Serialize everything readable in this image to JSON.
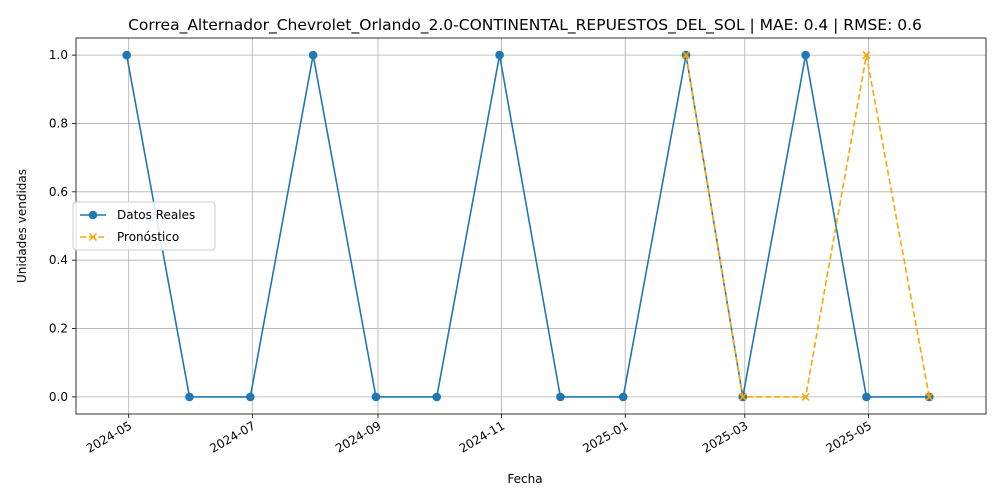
{
  "chart_data": {
    "type": "line",
    "title": "Correa_Alternador_Chevrolet_Orlando_2.0-CONTINENTAL_REPUESTOS_DEL_SOL | MAE: 0.4 | RMSE: 0.6",
    "xlabel": "Fecha",
    "ylabel": "Unidades vendidas",
    "xlim": [
      "2024-04-05",
      "2025-06-28"
    ],
    "ylim": [
      -0.05,
      1.05
    ],
    "grid": true,
    "legend_position": "center-left",
    "x_tick_labels": [
      "2024-05",
      "2024-07",
      "2024-09",
      "2024-11",
      "2025-01",
      "2025-03",
      "2025-05"
    ],
    "x_tick_dates": [
      "2024-05-01",
      "2024-07-01",
      "2024-09-01",
      "2024-11-01",
      "2025-01-01",
      "2025-03-01",
      "2025-05-01"
    ],
    "y_ticks": [
      0.0,
      0.2,
      0.4,
      0.6,
      0.8,
      1.0
    ],
    "y_tick_labels": [
      "0.0",
      "0.2",
      "0.4",
      "0.6",
      "0.8",
      "1.0"
    ],
    "series": [
      {
        "name": "Datos Reales",
        "color": "#1f77b4",
        "marker": "circle",
        "line_style": "solid",
        "x": [
          "2024-04-30",
          "2024-05-31",
          "2024-06-30",
          "2024-07-31",
          "2024-08-31",
          "2024-09-30",
          "2024-10-31",
          "2024-11-30",
          "2024-12-31",
          "2025-01-31",
          "2025-02-28",
          "2025-03-31",
          "2025-04-30",
          "2025-05-31"
        ],
        "values": [
          1,
          0,
          0,
          1,
          0,
          0,
          1,
          0,
          0,
          1,
          0,
          1,
          0,
          0
        ]
      },
      {
        "name": "Pronóstico",
        "color": "#ffa500",
        "marker": "x",
        "line_style": "dashed",
        "x": [
          "2025-01-31",
          "2025-02-28",
          "2025-03-31",
          "2025-04-30",
          "2025-05-31"
        ],
        "values": [
          1,
          0,
          0,
          1,
          0
        ]
      }
    ]
  }
}
